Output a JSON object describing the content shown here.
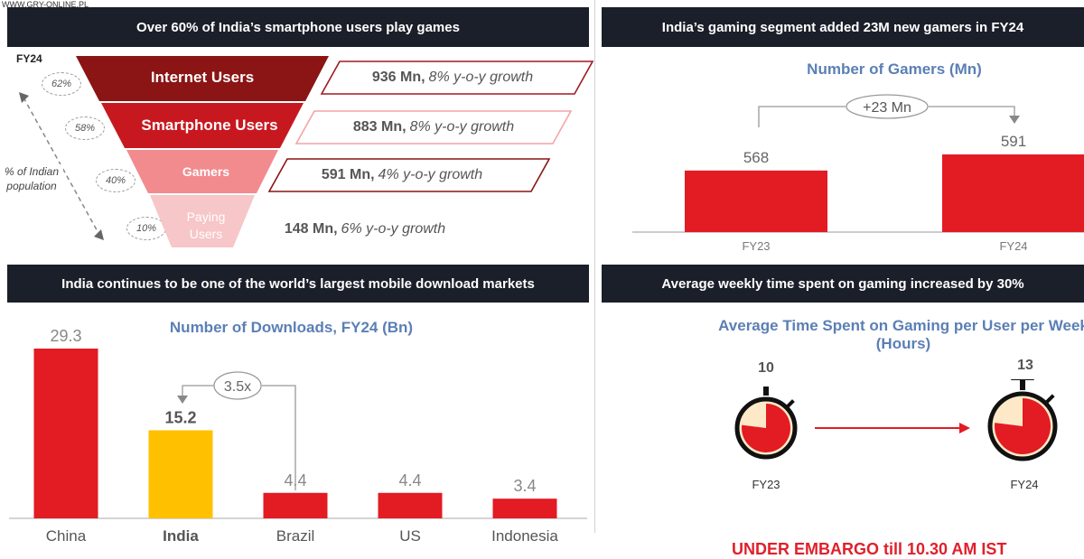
{
  "watermark": "WWW.GRY-ONLINE.PL",
  "colors": {
    "header_bg": "#1b1f2a",
    "red": "#e31b23",
    "dark_red": "#8b1414",
    "yellow": "#ffc000",
    "title_blue": "#5b7fb5"
  },
  "panel_funnel": {
    "header": "Over 60% of India’s smartphone users play games",
    "fy_label": "FY24",
    "side_label_line1": "% of Indian",
    "side_label_line2": "population",
    "levels": [
      {
        "label": "Internet Users",
        "pct": "62%",
        "value": "936 Mn,",
        "growth": "8% y-o-y growth"
      },
      {
        "label": "Smartphone Users",
        "pct": "58%",
        "value": "883 Mn,",
        "growth": "8% y-o-y growth"
      },
      {
        "label": "Gamers",
        "pct": "40%",
        "value": "591 Mn,",
        "growth": "4% y-o-y growth"
      },
      {
        "label_line1": "Paying",
        "label_line2": "Users",
        "pct": "10%",
        "value": "148 Mn,",
        "growth": "6% y-o-y growth"
      }
    ]
  },
  "panel_gamers": {
    "header": "India’s gaming segment added 23M new gamers in FY24",
    "chart_title": "Number of Gamers (Mn)",
    "delta_label": "+23 Mn"
  },
  "panel_downloads": {
    "header": "India continues to be one of the world’s largest mobile download markets",
    "chart_title": "Number of Downloads, FY24 (Bn)",
    "multiple_label": "3.5x"
  },
  "panel_time": {
    "header": "Average weekly time spent on gaming increased by 30%",
    "chart_title_line1": "Average Time Spent on Gaming per User per Week",
    "chart_title_line2": "(Hours)",
    "items": [
      {
        "period": "FY23",
        "hours": "10",
        "fraction": 0.77
      },
      {
        "period": "FY24",
        "hours": "13",
        "fraction": 0.77
      }
    ]
  },
  "chart_data": [
    {
      "type": "bar",
      "title": "Number of Gamers (Mn)",
      "categories": [
        "FY23",
        "FY24"
      ],
      "values": [
        568,
        591
      ],
      "ylim": [
        0,
        600
      ]
    },
    {
      "type": "bar",
      "title": "Number of Downloads, FY24 (Bn)",
      "categories": [
        "China",
        "India",
        "Brazil",
        "US",
        "Indonesia"
      ],
      "values": [
        29.3,
        15.2,
        4.4,
        4.4,
        3.4
      ],
      "value_labels": [
        "29.3",
        "15.2",
        "4.4",
        "4.4",
        "3.4"
      ],
      "highlight": "India",
      "ylim": [
        0,
        30
      ]
    }
  ],
  "embargo_text": "UNDER EMBARGO till 10.30 AM IST"
}
